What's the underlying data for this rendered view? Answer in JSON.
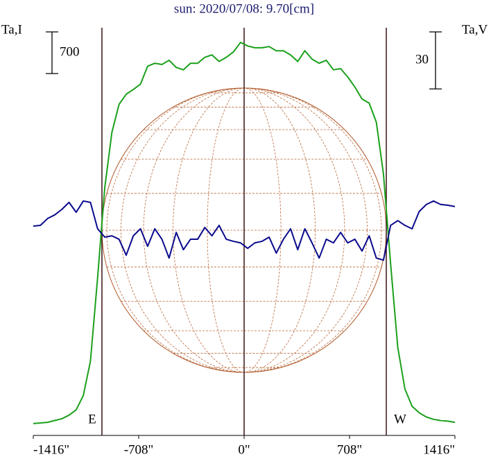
{
  "chart_data": {
    "type": "line",
    "title": "sun: 2020/07/08: 9.70[cm]",
    "ylabel": "Ta,I",
    "y2label": "Ta,V",
    "x": [
      -1416,
      -1368,
      -1320,
      -1272,
      -1224,
      -1176,
      -1128,
      -1080,
      -1032,
      -984,
      -936,
      -888,
      -840,
      -792,
      -744,
      -696,
      -648,
      -600,
      -552,
      -504,
      -456,
      -408,
      -360,
      -312,
      -264,
      -216,
      -168,
      -120,
      -72,
      -24,
      24,
      72,
      120,
      168,
      216,
      264,
      312,
      360,
      408,
      456,
      504,
      552,
      600,
      648,
      696,
      744,
      792,
      840,
      888,
      936,
      984,
      1032,
      1080,
      1128,
      1176,
      1224,
      1272,
      1320,
      1368,
      1416
    ],
    "series": [
      {
        "color": "#1aa01a",
        "values": [
          0,
          10,
          20,
          50,
          80,
          140,
          230,
          470,
          1050,
          2450,
          3960,
          4890,
          5360,
          5530,
          5610,
          5700,
          6000,
          6050,
          6030,
          6100,
          5980,
          5940,
          6050,
          6050,
          6150,
          6190,
          6080,
          6150,
          6240,
          6400,
          6340,
          6310,
          6310,
          6330,
          6260,
          6260,
          6190,
          6080,
          6260,
          6120,
          6050,
          6100,
          5940,
          5960,
          5820,
          5650,
          5450,
          5380,
          5060,
          4190,
          2680,
          1280,
          580,
          290,
          180,
          110,
          70,
          50,
          40,
          20
        ]
      },
      {
        "color": "#0a0a8c",
        "axis": "y2",
        "values": [
          5.1,
          5.5,
          9.1,
          11.0,
          13.9,
          17.6,
          12.4,
          18.3,
          17.6,
          3.7,
          -0.7,
          0,
          -1.8,
          -10.2,
          0,
          3.7,
          -5.5,
          3.7,
          -1.8,
          -11.7,
          1.8,
          -7.3,
          -1.8,
          -1.8,
          4.4,
          0,
          5.5,
          -1.8,
          -2.9,
          -3.7,
          -6.6,
          -3.7,
          -2.9,
          -0.7,
          -9.1,
          -1.8,
          3.7,
          -7.3,
          3.7,
          -3.7,
          -11.7,
          -1.8,
          -3.7,
          1.8,
          -3.7,
          -1.8,
          -8.0,
          0,
          -11.7,
          -12.8,
          5.5,
          8.0,
          5.5,
          3.7,
          12.8,
          16.5,
          18.3,
          16.5,
          16.1,
          15.4
        ]
      }
    ],
    "xlim": [
      -1416,
      1416
    ],
    "xticks": [
      {
        "value": -1416,
        "label": "-1416\""
      },
      {
        "value": -708,
        "label": "-708\""
      },
      {
        "value": 0,
        "label": "0\""
      },
      {
        "value": 708,
        "label": "708\""
      },
      {
        "value": 1416,
        "label": "1416\""
      }
    ],
    "ylim": [
      -200,
      6600
    ],
    "y2lim": [
      -105,
      108
    ],
    "y_scale_bar": 700,
    "y2_scale_bar": 30,
    "limb_x": [
      -955,
      955
    ],
    "limb_labels": [
      "E",
      "W"
    ],
    "center_line_x": 0,
    "disk_radius": 955
  }
}
